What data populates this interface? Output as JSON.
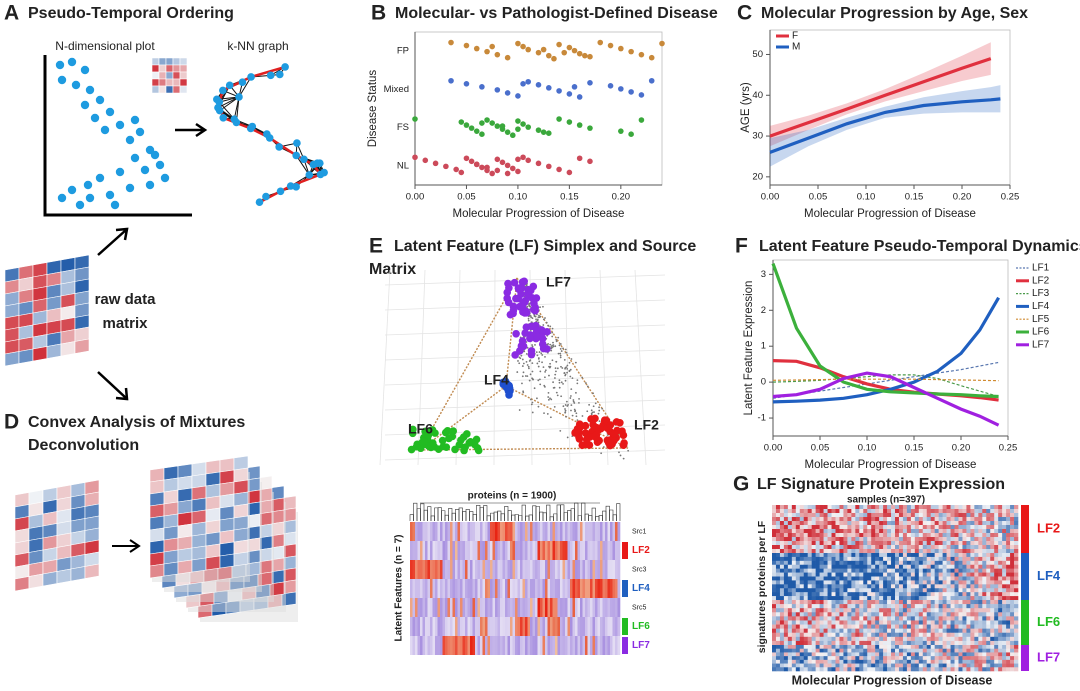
{
  "chart_data": [
    {
      "type": "strip",
      "panel_label": "B",
      "title": "Molecular- vs Pathologist-Defined Disease",
      "x_label": "Molecular Progression of Disease",
      "y_label": "Disease Status",
      "categories": [
        "FP",
        "Mixed",
        "FS",
        "NL"
      ],
      "colors": [
        "#c8893a",
        "#4a6fcc",
        "#3aa83c",
        "#cc4a5a"
      ],
      "values": [
        [
          0.035,
          0.05,
          0.06,
          0.07,
          0.08,
          0.09,
          0.1,
          0.105,
          0.11,
          0.12,
          0.13,
          0.135,
          0.14,
          0.15,
          0.155,
          0.16,
          0.17,
          0.18,
          0.19,
          0.2,
          0.21,
          0.22,
          0.23,
          0.24,
          0.075,
          0.125,
          0.145,
          0.165
        ],
        [
          0.035,
          0.05,
          0.065,
          0.08,
          0.09,
          0.1,
          0.11,
          0.12,
          0.13,
          0.14,
          0.15,
          0.16,
          0.17,
          0.19,
          0.2,
          0.21,
          0.22,
          0.23,
          0.105,
          0.155
        ],
        [
          0.0,
          0.045,
          0.05,
          0.055,
          0.06,
          0.065,
          0.07,
          0.075,
          0.08,
          0.085,
          0.09,
          0.095,
          0.1,
          0.105,
          0.11,
          0.12,
          0.13,
          0.14,
          0.15,
          0.16,
          0.17,
          0.2,
          0.21,
          0.22,
          0.065,
          0.085,
          0.1,
          0.125
        ],
        [
          0.0,
          0.01,
          0.02,
          0.03,
          0.04,
          0.045,
          0.05,
          0.055,
          0.06,
          0.065,
          0.07,
          0.075,
          0.08,
          0.085,
          0.09,
          0.095,
          0.1,
          0.105,
          0.11,
          0.12,
          0.13,
          0.14,
          0.15,
          0.16,
          0.17,
          0.06,
          0.07,
          0.08,
          0.09,
          0.1
        ]
      ],
      "xlim": [
        0,
        0.24
      ],
      "xticks": [
        {
          "value": 0,
          "label": "0.00"
        },
        0.05,
        {
          "value": 0.1,
          "label": "0.10"
        },
        0.15,
        {
          "value": 0.2,
          "label": "0.20"
        }
      ]
    },
    {
      "type": "line",
      "panel_label": "C",
      "title": "Molecular Progression by Age, Sex",
      "x_label": "Molecular Progression of Disease",
      "y_label": "AGE (yrs)",
      "x": [
        0,
        0.04,
        0.08,
        0.12,
        0.16,
        0.2,
        0.23,
        0.24
      ],
      "series": [
        {
          "name": "F",
          "color": "#e0303e",
          "values": [
            30,
            33.3,
            36.6,
            40,
            43.3,
            46.6,
            49,
            null
          ],
          "lower": [
            27.5,
            31.5,
            35.3,
            38.5,
            41,
            43.5,
            45,
            null
          ],
          "upper": [
            32.5,
            35,
            38,
            41.5,
            45.5,
            49.7,
            53,
            null
          ]
        },
        {
          "name": "M",
          "color": "#1f5fc0",
          "values": [
            26,
            29.5,
            33,
            35.8,
            37.5,
            38.4,
            38.9,
            39.1
          ],
          "lower": [
            22.5,
            27.5,
            31.5,
            34.5,
            35.5,
            35.8,
            35.8,
            35.8
          ],
          "upper": [
            29.5,
            31.5,
            34.5,
            37.2,
            39.5,
            41,
            42,
            42.5
          ]
        }
      ],
      "xlim": [
        0,
        0.25
      ],
      "xticks": [
        {
          "value": 0,
          "label": "0.00"
        },
        0.05,
        {
          "value": 0.1,
          "label": "0.10"
        },
        0.15,
        {
          "value": 0.2,
          "label": "0.20"
        },
        0.25
      ],
      "ylim": [
        18,
        56
      ],
      "yticks": [
        20,
        30,
        40,
        50
      ],
      "legend": "top-left"
    },
    {
      "type": "line",
      "panel_label": "F",
      "title": "Latent Feature Pseudo-Temporal Dynamics",
      "x_label": "Molecular Progression of Disease",
      "y_label": "Latent Feature Expression",
      "x": [
        0,
        0.025,
        0.05,
        0.075,
        0.1,
        0.125,
        0.15,
        0.175,
        0.2,
        0.22,
        0.24
      ],
      "series": [
        {
          "name": "LF1",
          "color": "#5a78b0",
          "dashed": true,
          "values": [
            -0.45,
            -0.35,
            -0.25,
            -0.15,
            -0.05,
            0.05,
            0.15,
            0.25,
            0.35,
            0.45,
            0.55
          ]
        },
        {
          "name": "LF2",
          "color": "#e0303e",
          "values": [
            0.6,
            0.58,
            0.4,
            0.15,
            -0.05,
            -0.2,
            -0.28,
            -0.33,
            -0.38,
            -0.43,
            -0.5
          ]
        },
        {
          "name": "LF3",
          "color": "#4a9a4a",
          "dashed": true,
          "values": [
            0,
            0.02,
            0.05,
            0.1,
            0.15,
            0.2,
            0.2,
            0.1,
            -0.1,
            -0.25,
            -0.4
          ]
        },
        {
          "name": "LF4",
          "color": "#1f5fc0",
          "values": [
            -0.55,
            -0.53,
            -0.5,
            -0.45,
            -0.35,
            -0.2,
            0,
            0.3,
            0.8,
            1.45,
            2.35
          ]
        },
        {
          "name": "LF5",
          "color": "#d08a30",
          "dashed": true,
          "values": [
            0.05,
            0.06,
            0.07,
            0.08,
            0.08,
            0.08,
            0.08,
            0.07,
            0.06,
            0.05,
            0.04
          ]
        },
        {
          "name": "LF6",
          "color": "#3cb03c",
          "values": [
            3.3,
            1.5,
            0.45,
            0,
            -0.2,
            -0.27,
            -0.3,
            -0.33,
            -0.35,
            -0.38,
            -0.4
          ]
        },
        {
          "name": "LF7",
          "color": "#a020e0",
          "values": [
            -0.4,
            -0.35,
            -0.2,
            0.1,
            0.25,
            0.15,
            -0.15,
            -0.45,
            -0.75,
            -0.95,
            -1.2
          ]
        }
      ],
      "xlim": [
        0,
        0.25
      ],
      "xticks": [
        {
          "value": 0,
          "label": "0.00"
        },
        0.05,
        {
          "value": 0.1,
          "label": "0.10"
        },
        0.15,
        {
          "value": 0.2,
          "label": "0.20"
        },
        0.25
      ],
      "ylim": [
        -1.5,
        3.4
      ],
      "yticks": [
        -1,
        0,
        1,
        2,
        3
      ],
      "legend": "right"
    }
  ],
  "panels": {
    "A": {
      "label": "A",
      "title": "Pseudo-Temporal Ordering",
      "plot_label": "N-dimensional plot",
      "graph_label": "k-NN graph",
      "matrix_label": [
        "raw data",
        "matrix"
      ]
    },
    "D": {
      "label": "D",
      "title": [
        "Convex Analysis of Mixtures",
        "Deconvolution"
      ]
    },
    "E": {
      "label": "E",
      "title": [
        "Latent Feature (LF) Simplex and Source",
        "Matrix"
      ],
      "vertices": [
        "LF7",
        "LF4",
        "LF6",
        "LF2"
      ],
      "heatmap_title": "proteins (n = 1900)",
      "heatmap_ylabel": "Latent Features (n = 7)",
      "rows": [
        "Src1",
        "LF2",
        "Src3",
        "LF4",
        "Src5",
        "LF6",
        "LF7"
      ]
    },
    "G": {
      "label": "G",
      "title": "LF Signature Protein Expression",
      "samples": "samples (n=397)",
      "ylabel": "signatures proteins per LF",
      "xlabel": "Molecular Progression of Disease",
      "groups": [
        "LF2",
        "LF4",
        "LF6",
        "LF7"
      ]
    }
  }
}
